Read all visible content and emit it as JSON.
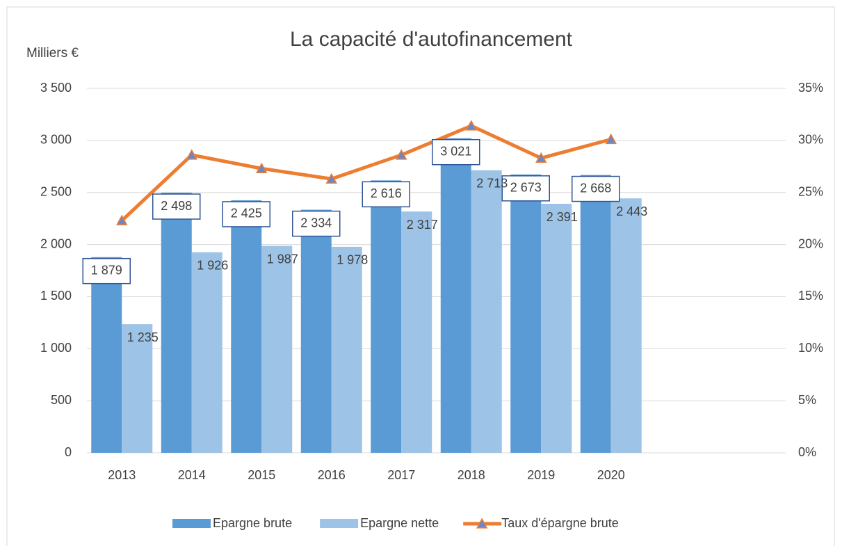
{
  "chart_data": {
    "type": "bar",
    "title": "La capacité d'autofinancement",
    "y_axis_label": "Milliers €",
    "categories": [
      "2013",
      "2014",
      "2015",
      "2016",
      "2017",
      "2018",
      "2019",
      "2020",
      null,
      null
    ],
    "series": [
      {
        "name": "Epargne brute",
        "color": "#5b9bd5",
        "type": "bar",
        "values": [
          1879,
          2498,
          2425,
          2334,
          2616,
          3021,
          2673,
          2668,
          null,
          null
        ],
        "value_labels": [
          "1 879",
          "2 498",
          "2 425",
          "2 334",
          "2 616",
          "3 021",
          "2 673",
          "2 668",
          null,
          null
        ]
      },
      {
        "name": "Epargne nette",
        "color": "#9dc3e6",
        "type": "bar",
        "values": [
          1235,
          1926,
          1987,
          1978,
          2317,
          2713,
          2391,
          2443,
          null,
          null
        ],
        "value_labels": [
          "1 235",
          "1 926",
          "1 987",
          "1 978",
          "2 317",
          "2 713",
          "2 391",
          "2 443",
          null,
          null
        ]
      },
      {
        "name": "Taux d'épargne brute",
        "color": "#ed7d31",
        "type": "line",
        "axis": "y2",
        "values": [
          22.3,
          28.6,
          27.3,
          26.3,
          28.6,
          31.4,
          28.3,
          30.1,
          null,
          null
        ]
      }
    ],
    "ylim": [
      0,
      3500
    ],
    "yticks": [
      0,
      500,
      {
        "value": 1000,
        "label": "1 000"
      },
      {
        "value": 1500,
        "label": "1 500"
      },
      {
        "value": 2000,
        "label": "2 000"
      },
      {
        "value": 2500,
        "label": "2 500"
      },
      {
        "value": 3000,
        "label": "3 000"
      },
      {
        "value": 3500,
        "label": "3 500"
      }
    ],
    "y2lim": [
      0,
      35
    ],
    "y2ticks": [
      {
        "value": 0,
        "label": "0%"
      },
      {
        "value": 5,
        "label": "5%"
      },
      {
        "value": 10,
        "label": "10%"
      },
      {
        "value": 15,
        "label": "15%"
      },
      {
        "value": 20,
        "label": "20%"
      },
      {
        "value": 25,
        "label": "25%"
      },
      {
        "value": 30,
        "label": "30%"
      },
      {
        "value": 35,
        "label": "35%"
      }
    ],
    "grid": true,
    "legend": "bottom"
  }
}
